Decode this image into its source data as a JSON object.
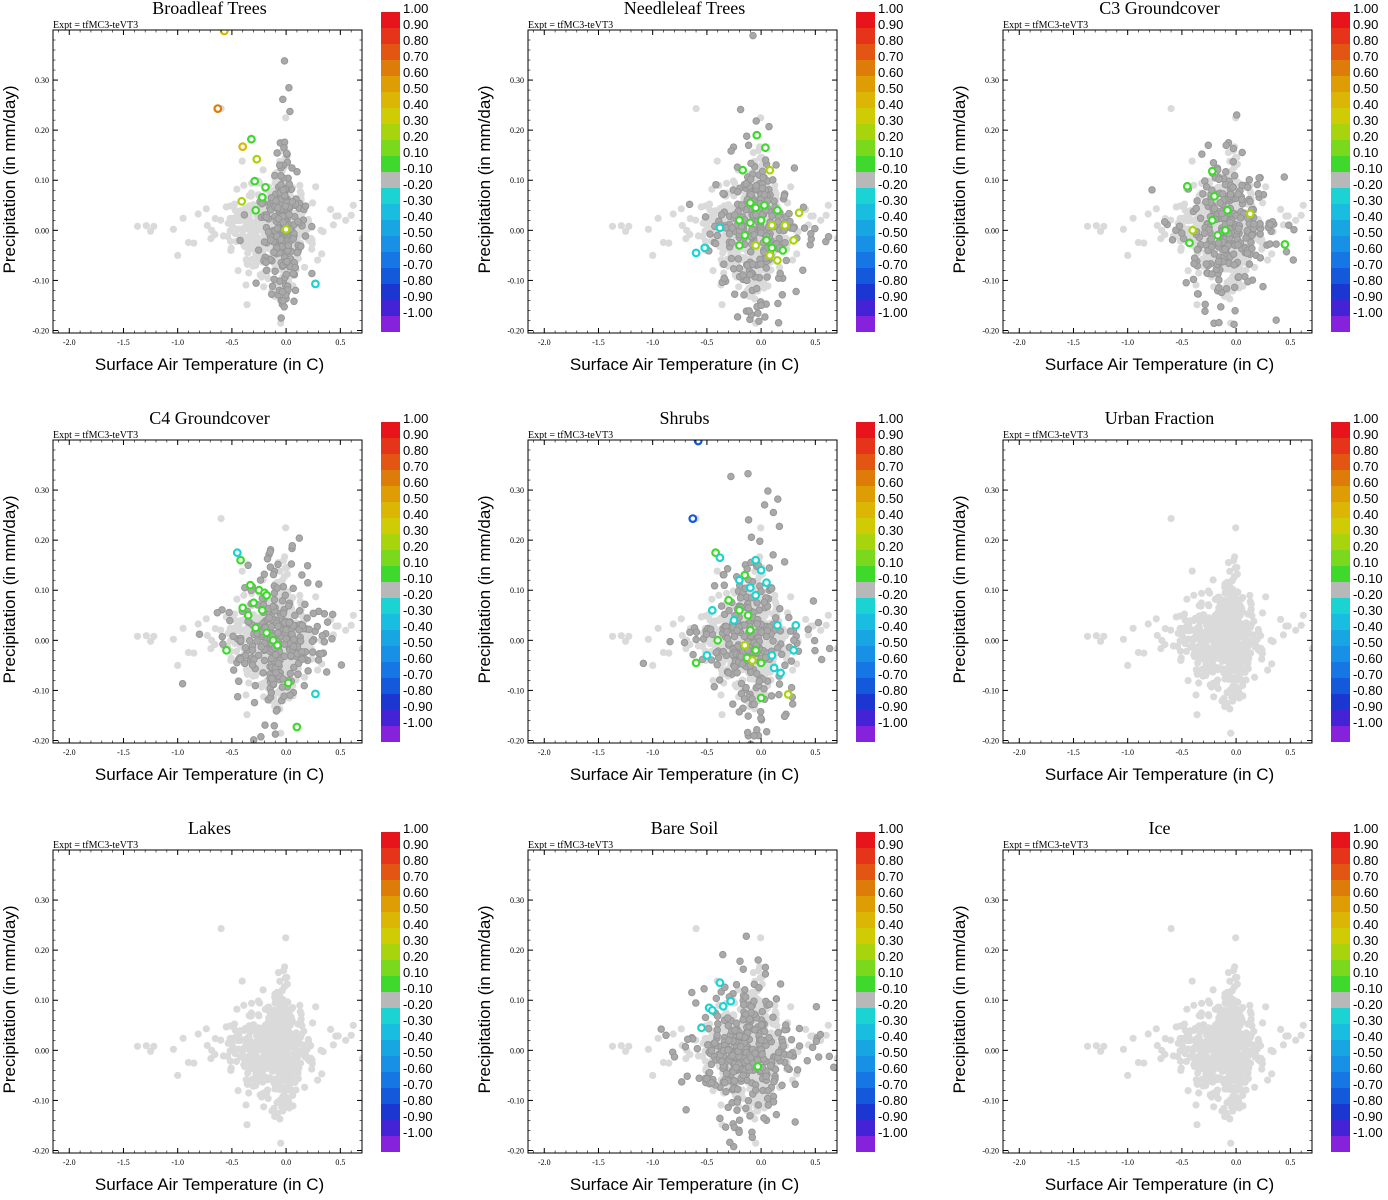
{
  "chart_data": {
    "type": "scatter",
    "experiment_label": "Expt = tfMC3-teVT3",
    "xlabel": "Surface Air Temperature (in C)",
    "ylabel": "Precipitation (in mm/day)",
    "xlim": [
      -2.15,
      0.7
    ],
    "ylim": [
      -0.205,
      0.4
    ],
    "x_ticks": [
      -2.0,
      -1.5,
      -1.0,
      -0.5,
      0.0,
      0.5
    ],
    "x_tick_labels": [
      "-2.0",
      "-1.5",
      "-1.0",
      "-0.5",
      "0.0",
      "0.5"
    ],
    "y_ticks": [
      -0.2,
      -0.1,
      0.0,
      0.1,
      0.2,
      0.3
    ],
    "y_tick_labels": [
      "-0.20",
      "-0.10",
      "0.00",
      "0.10",
      "0.20",
      "0.30"
    ],
    "colorbar": {
      "labels": [
        "1.00",
        "0.90",
        "0.80",
        "0.70",
        "0.60",
        "0.50",
        "0.40",
        "0.30",
        "0.20",
        "0.10",
        "-0.10",
        "-0.20",
        "-0.30",
        "-0.40",
        "-0.50",
        "-0.60",
        "-0.70",
        "-0.80",
        "-0.90",
        "-1.00"
      ],
      "colors": [
        "#e8141c",
        "#e6341a",
        "#e25512",
        "#dd7c08",
        "#df9d05",
        "#dcb605",
        "#cfcc06",
        "#a7d40d",
        "#7ad81d",
        "#3fd92e",
        "#b8b8b8",
        "#1bd3d3",
        "#19bde0",
        "#18a6e2",
        "#1890e6",
        "#1676e3",
        "#1458dc",
        "#1c36d2",
        "#4422d6",
        "#8622dc"
      ]
    },
    "point_colors": {
      "light": "#dadada",
      "gray": "#a9a9a9",
      "green": "#3fd92e",
      "yellowgreen": "#a7d40d",
      "orange": "#dd7c08",
      "gold": "#dcb605",
      "cyan": "#1bd3d3",
      "blue": "#1458dc"
    },
    "panels": [
      {
        "title": "Broadleaf Trees",
        "gray_cluster": {
          "cx": -0.02,
          "cy": 0.0,
          "sx": 0.08,
          "sy": 0.085,
          "n": 240
        },
        "highlights": [
          {
            "x": -0.63,
            "y": 0.243,
            "c": "orange"
          },
          {
            "x": -0.57,
            "y": 0.398,
            "c": "gold"
          },
          {
            "x": -0.4,
            "y": 0.167,
            "c": "gold"
          },
          {
            "x": -0.32,
            "y": 0.182,
            "c": "green"
          },
          {
            "x": -0.27,
            "y": 0.142,
            "c": "yellowgreen"
          },
          {
            "x": -0.19,
            "y": 0.086,
            "c": "green"
          },
          {
            "x": -0.29,
            "y": 0.098,
            "c": "green"
          },
          {
            "x": -0.41,
            "y": 0.058,
            "c": "yellowgreen"
          },
          {
            "x": -0.28,
            "y": 0.04,
            "c": "green"
          },
          {
            "x": -0.22,
            "y": 0.066,
            "c": "green"
          },
          {
            "x": 0.0,
            "y": 0.002,
            "c": "yellowgreen"
          },
          {
            "x": 0.27,
            "y": -0.107,
            "c": "cyan"
          }
        ]
      },
      {
        "title": "Needleleaf Trees",
        "gray_cluster": {
          "cx": -0.05,
          "cy": 0.0,
          "sx": 0.18,
          "sy": 0.08,
          "n": 260
        },
        "highlights": [
          {
            "x": -0.04,
            "y": 0.19,
            "c": "green"
          },
          {
            "x": 0.04,
            "y": 0.165,
            "c": "green"
          },
          {
            "x": -0.17,
            "y": 0.12,
            "c": "green"
          },
          {
            "x": 0.08,
            "y": 0.12,
            "c": "yellowgreen"
          },
          {
            "x": -0.1,
            "y": 0.055,
            "c": "green"
          },
          {
            "x": -0.05,
            "y": 0.045,
            "c": "green"
          },
          {
            "x": 0.03,
            "y": 0.05,
            "c": "green"
          },
          {
            "x": 0.15,
            "y": 0.04,
            "c": "green"
          },
          {
            "x": 0.35,
            "y": 0.035,
            "c": "yellowgreen"
          },
          {
            "x": -0.2,
            "y": 0.02,
            "c": "green"
          },
          {
            "x": -0.1,
            "y": 0.015,
            "c": "green"
          },
          {
            "x": 0.0,
            "y": 0.02,
            "c": "green"
          },
          {
            "x": 0.1,
            "y": 0.01,
            "c": "yellowgreen"
          },
          {
            "x": 0.22,
            "y": 0.01,
            "c": "yellowgreen"
          },
          {
            "x": -0.15,
            "y": -0.01,
            "c": "green"
          },
          {
            "x": 0.05,
            "y": -0.02,
            "c": "green"
          },
          {
            "x": 0.3,
            "y": -0.02,
            "c": "yellowgreen"
          },
          {
            "x": -0.2,
            "y": -0.03,
            "c": "green"
          },
          {
            "x": -0.05,
            "y": -0.03,
            "c": "yellowgreen"
          },
          {
            "x": 0.1,
            "y": -0.035,
            "c": "green"
          },
          {
            "x": 0.2,
            "y": -0.04,
            "c": "green"
          },
          {
            "x": 0.08,
            "y": -0.05,
            "c": "yellowgreen"
          },
          {
            "x": 0.15,
            "y": -0.06,
            "c": "yellowgreen"
          },
          {
            "x": -0.38,
            "y": 0.005,
            "c": "cyan"
          },
          {
            "x": -0.52,
            "y": -0.035,
            "c": "cyan"
          },
          {
            "x": -0.6,
            "y": -0.045,
            "c": "cyan"
          }
        ]
      },
      {
        "title": "C3 Groundcover",
        "gray_cluster": {
          "cx": -0.08,
          "cy": 0.0,
          "sx": 0.2,
          "sy": 0.07,
          "n": 280
        },
        "highlights": [
          {
            "x": -0.22,
            "y": 0.118,
            "c": "green"
          },
          {
            "x": -0.45,
            "y": 0.088,
            "c": "green"
          },
          {
            "x": -0.2,
            "y": 0.068,
            "c": "green"
          },
          {
            "x": -0.08,
            "y": 0.04,
            "c": "green"
          },
          {
            "x": 0.13,
            "y": 0.033,
            "c": "yellowgreen"
          },
          {
            "x": -0.22,
            "y": 0.02,
            "c": "green"
          },
          {
            "x": -0.4,
            "y": 0.0,
            "c": "yellowgreen"
          },
          {
            "x": -0.1,
            "y": 0.0,
            "c": "green"
          },
          {
            "x": -0.17,
            "y": -0.01,
            "c": "green"
          },
          {
            "x": -0.43,
            "y": -0.025,
            "c": "green"
          },
          {
            "x": 0.45,
            "y": -0.028,
            "c": "green"
          }
        ]
      },
      {
        "title": "C4 Groundcover",
        "gray_cluster": {
          "cx": -0.1,
          "cy": 0.0,
          "sx": 0.18,
          "sy": 0.075,
          "n": 280
        },
        "highlights": [
          {
            "x": -0.42,
            "y": 0.16,
            "c": "green"
          },
          {
            "x": -0.45,
            "y": 0.175,
            "c": "cyan"
          },
          {
            "x": -0.33,
            "y": 0.11,
            "c": "green"
          },
          {
            "x": -0.25,
            "y": 0.1,
            "c": "green"
          },
          {
            "x": -0.2,
            "y": 0.095,
            "c": "green"
          },
          {
            "x": -0.18,
            "y": 0.09,
            "c": "green"
          },
          {
            "x": -0.3,
            "y": 0.075,
            "c": "green"
          },
          {
            "x": -0.4,
            "y": 0.065,
            "c": "green"
          },
          {
            "x": -0.22,
            "y": 0.06,
            "c": "green"
          },
          {
            "x": -0.35,
            "y": 0.05,
            "c": "green"
          },
          {
            "x": -0.28,
            "y": 0.025,
            "c": "green"
          },
          {
            "x": -0.18,
            "y": 0.015,
            "c": "green"
          },
          {
            "x": -0.12,
            "y": 0.0,
            "c": "green"
          },
          {
            "x": -0.08,
            "y": -0.01,
            "c": "green"
          },
          {
            "x": -0.55,
            "y": -0.02,
            "c": "green"
          },
          {
            "x": 0.02,
            "y": -0.085,
            "c": "green"
          },
          {
            "x": 0.27,
            "y": -0.107,
            "c": "cyan"
          },
          {
            "x": 0.1,
            "y": -0.173,
            "c": "green"
          }
        ]
      },
      {
        "title": "Shrubs",
        "gray_cluster": {
          "cx": -0.1,
          "cy": 0.0,
          "sx": 0.2,
          "sy": 0.08,
          "n": 280
        },
        "highlights": [
          {
            "x": -0.58,
            "y": 0.398,
            "c": "blue"
          },
          {
            "x": -0.63,
            "y": 0.243,
            "c": "blue"
          },
          {
            "x": -0.42,
            "y": 0.175,
            "c": "green"
          },
          {
            "x": -0.38,
            "y": 0.165,
            "c": "cyan"
          },
          {
            "x": -0.05,
            "y": 0.16,
            "c": "cyan"
          },
          {
            "x": 0.0,
            "y": 0.14,
            "c": "cyan"
          },
          {
            "x": -0.15,
            "y": 0.13,
            "c": "green"
          },
          {
            "x": -0.2,
            "y": 0.12,
            "c": "cyan"
          },
          {
            "x": 0.05,
            "y": 0.115,
            "c": "cyan"
          },
          {
            "x": -0.1,
            "y": 0.105,
            "c": "cyan"
          },
          {
            "x": -0.05,
            "y": 0.09,
            "c": "cyan"
          },
          {
            "x": -0.3,
            "y": 0.08,
            "c": "green"
          },
          {
            "x": -0.2,
            "y": 0.06,
            "c": "green"
          },
          {
            "x": -0.12,
            "y": 0.05,
            "c": "green"
          },
          {
            "x": -0.45,
            "y": 0.06,
            "c": "cyan"
          },
          {
            "x": -0.25,
            "y": 0.04,
            "c": "cyan"
          },
          {
            "x": 0.15,
            "y": 0.03,
            "c": "cyan"
          },
          {
            "x": 0.32,
            "y": 0.03,
            "c": "cyan"
          },
          {
            "x": -0.1,
            "y": 0.02,
            "c": "green"
          },
          {
            "x": -0.4,
            "y": 0.0,
            "c": "green"
          },
          {
            "x": -0.15,
            "y": -0.01,
            "c": "yellowgreen"
          },
          {
            "x": -0.05,
            "y": -0.02,
            "c": "green"
          },
          {
            "x": 0.1,
            "y": -0.03,
            "c": "cyan"
          },
          {
            "x": 0.3,
            "y": -0.02,
            "c": "cyan"
          },
          {
            "x": -0.5,
            "y": -0.03,
            "c": "cyan"
          },
          {
            "x": -0.13,
            "y": -0.035,
            "c": "green"
          },
          {
            "x": -0.08,
            "y": -0.04,
            "c": "yellowgreen"
          },
          {
            "x": 0.0,
            "y": -0.045,
            "c": "green"
          },
          {
            "x": -0.6,
            "y": -0.045,
            "c": "green"
          },
          {
            "x": 0.12,
            "y": -0.055,
            "c": "cyan"
          },
          {
            "x": 0.18,
            "y": -0.065,
            "c": "cyan"
          },
          {
            "x": 0.25,
            "y": -0.108,
            "c": "yellowgreen"
          },
          {
            "x": 0.0,
            "y": -0.115,
            "c": "green"
          }
        ]
      },
      {
        "title": "Urban Fraction",
        "gray_cluster": {
          "cx": 0.0,
          "cy": 0.0,
          "sx": 0.0,
          "sy": 0.0,
          "n": 0
        },
        "highlights": []
      },
      {
        "title": "Lakes",
        "gray_cluster": {
          "cx": 0.0,
          "cy": 0.0,
          "sx": 0.0,
          "sy": 0.0,
          "n": 0
        },
        "highlights": []
      },
      {
        "title": "Bare Soil",
        "gray_cluster": {
          "cx": -0.15,
          "cy": -0.005,
          "sx": 0.24,
          "sy": 0.065,
          "n": 340
        },
        "highlights": [
          {
            "x": -0.35,
            "y": 0.088,
            "c": "cyan"
          },
          {
            "x": -0.48,
            "y": 0.085,
            "c": "cyan"
          },
          {
            "x": -0.38,
            "y": 0.135,
            "c": "cyan"
          },
          {
            "x": -0.45,
            "y": 0.08,
            "c": "cyan"
          },
          {
            "x": -0.28,
            "y": 0.098,
            "c": "cyan"
          },
          {
            "x": -0.55,
            "y": 0.045,
            "c": "cyan"
          },
          {
            "x": -0.03,
            "y": -0.032,
            "c": "green"
          }
        ]
      },
      {
        "title": "Ice",
        "gray_cluster": {
          "cx": 0.0,
          "cy": 0.0,
          "sx": 0.0,
          "sy": 0.0,
          "n": 0
        },
        "highlights": []
      }
    ]
  }
}
